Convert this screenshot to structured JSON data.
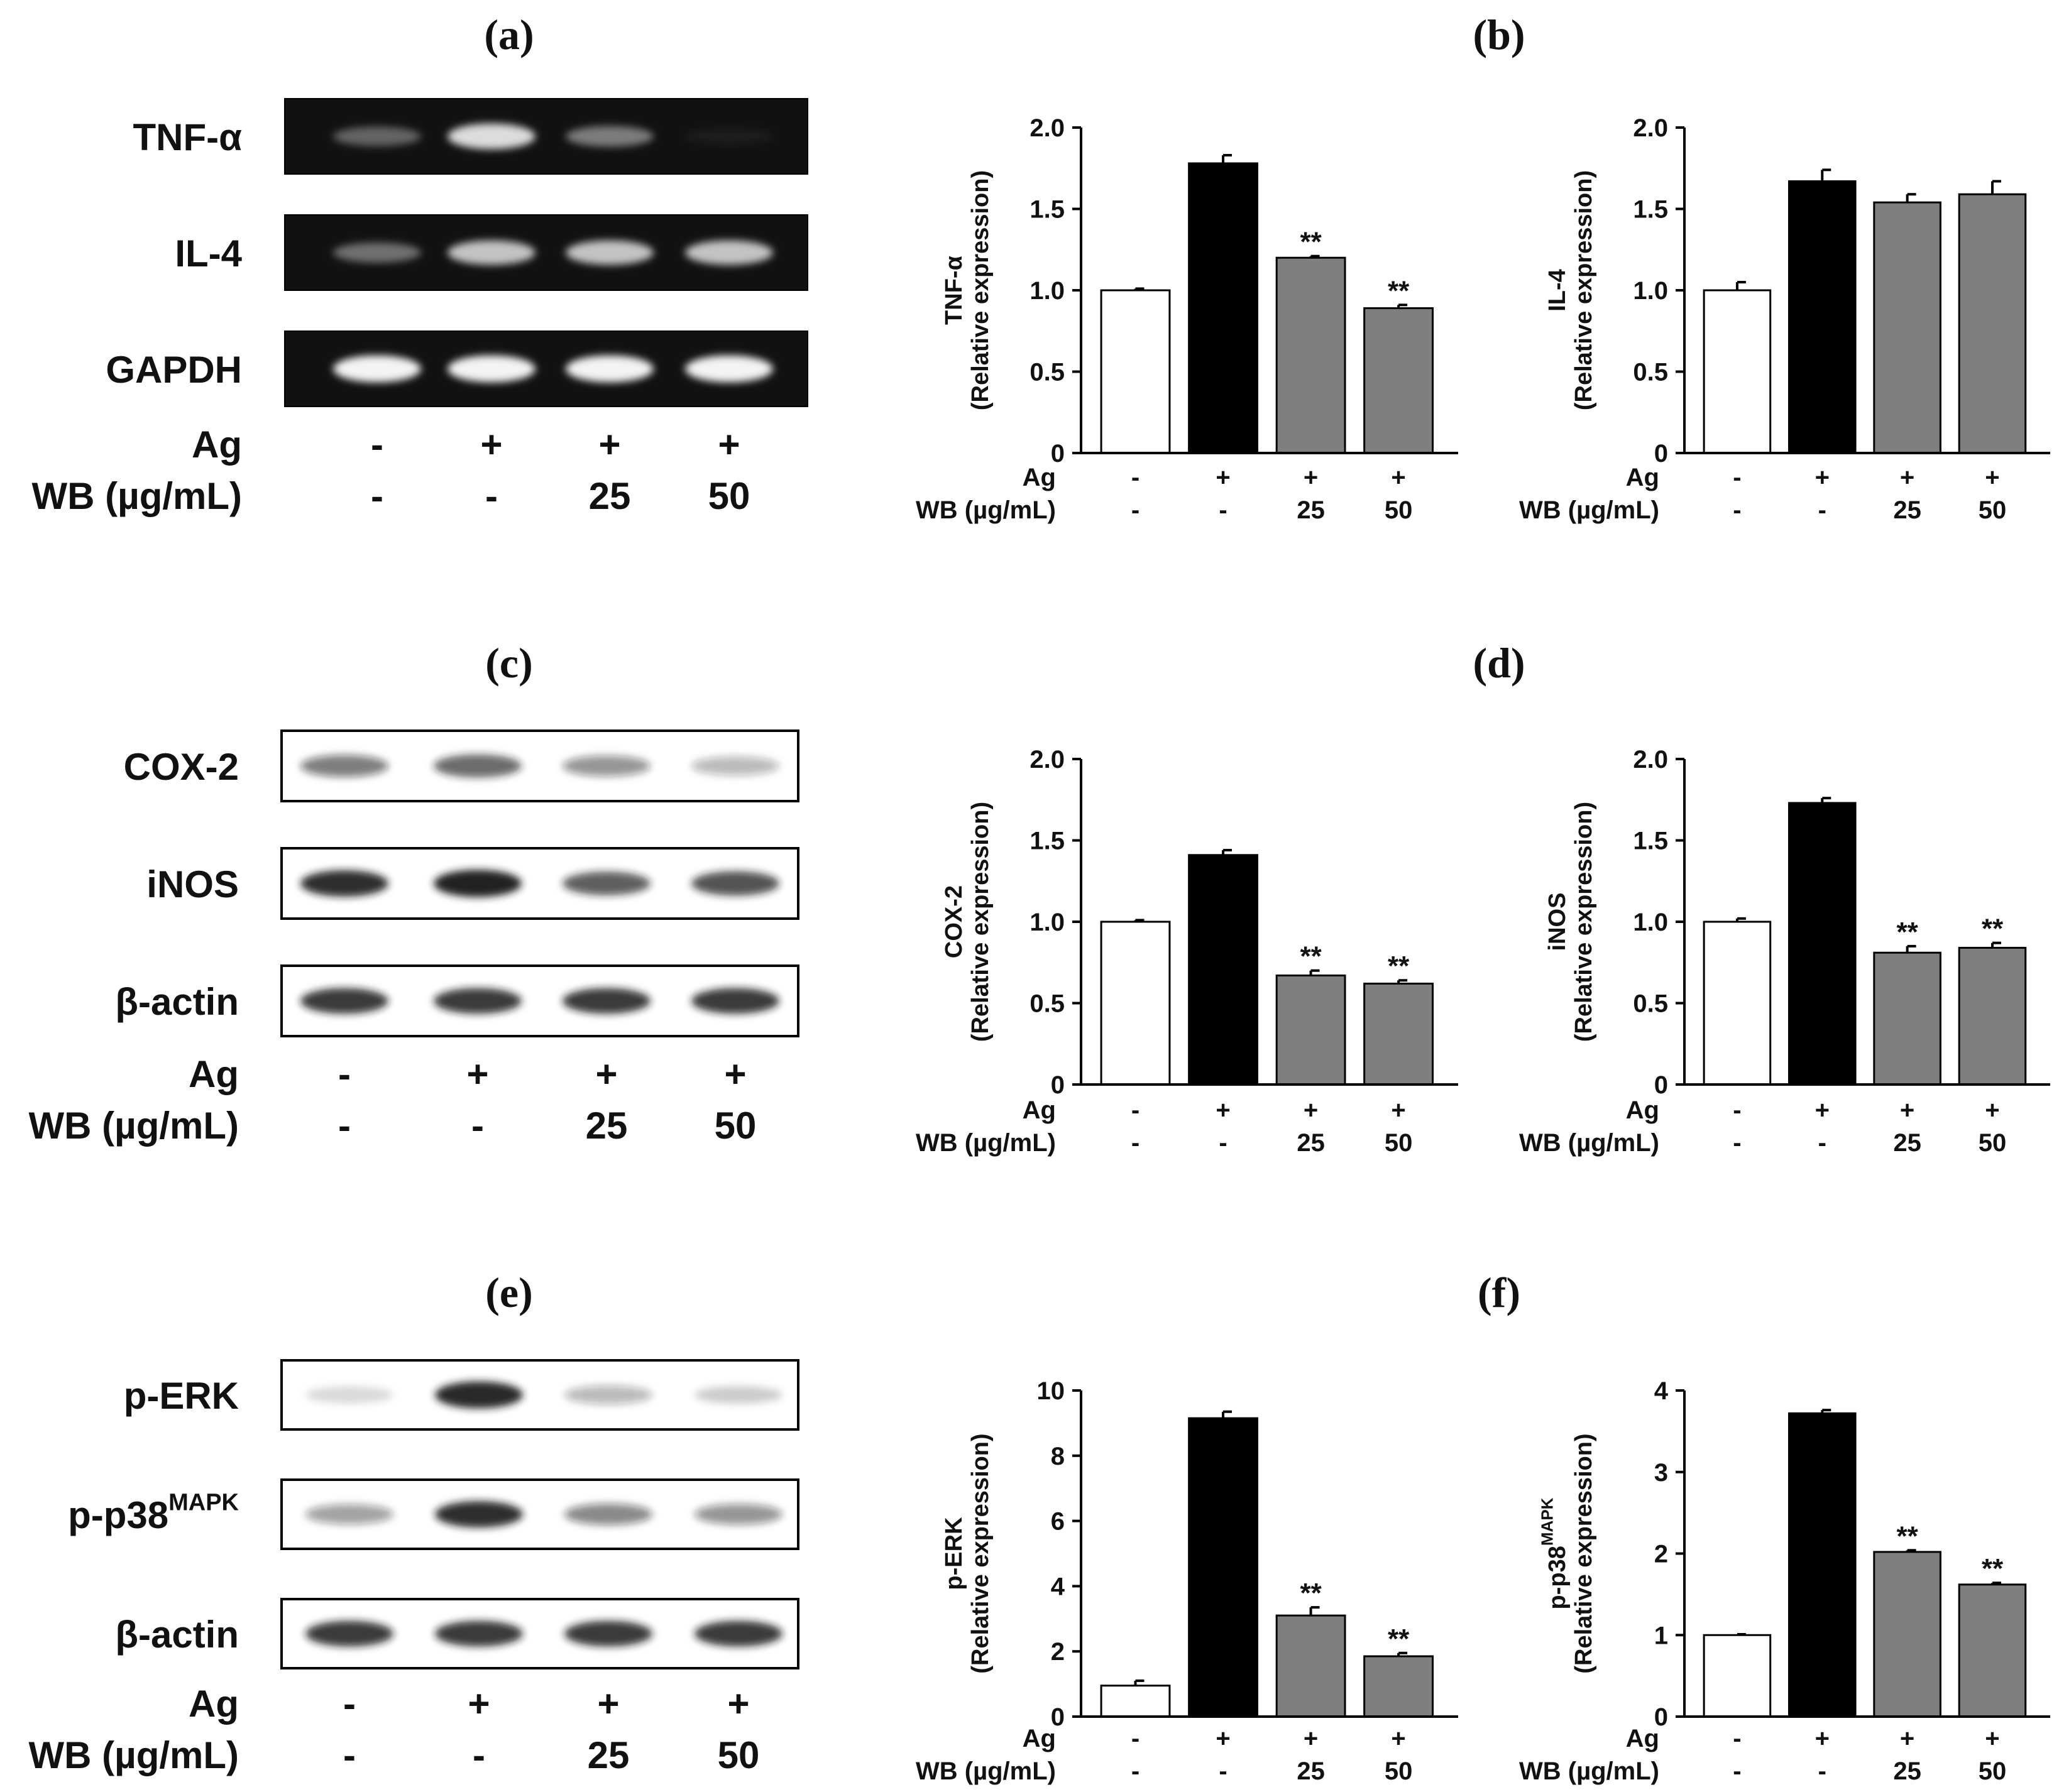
{
  "figure": {
    "ag_label": "Ag",
    "wb_label": "WB (µg/mL)",
    "ylabel_suffix": "(Relative expression)",
    "conditions": [
      {
        "ag": "-",
        "wb": "-"
      },
      {
        "ag": "+",
        "wb": "-"
      },
      {
        "ag": "+",
        "wb": "25"
      },
      {
        "ag": "+",
        "wb": "50"
      }
    ],
    "colors": {
      "control": "#ffffff",
      "ag_only": "#000000",
      "treated": "#7f7f7f",
      "axis": "#000000"
    }
  },
  "blots": [
    {
      "panel": "(a)",
      "style": "gel",
      "rows": [
        {
          "name": "TNF-α",
          "sup": "",
          "intensities": [
            0.35,
            0.85,
            0.45,
            0.05
          ]
        },
        {
          "name": "IL-4",
          "sup": "",
          "intensities": [
            0.4,
            0.75,
            0.75,
            0.75
          ]
        },
        {
          "name": "GAPDH",
          "sup": "",
          "intensities": [
            0.95,
            0.95,
            0.95,
            0.95
          ]
        }
      ],
      "ag": [
        "-",
        "+",
        "+",
        "+"
      ],
      "wb": [
        "-",
        "-",
        "25",
        "50"
      ]
    },
    {
      "panel": "(c)",
      "style": "western",
      "rows": [
        {
          "name": "COX-2",
          "sup": "",
          "intensities": [
            0.55,
            0.65,
            0.45,
            0.3
          ]
        },
        {
          "name": "iNOS",
          "sup": "",
          "intensities": [
            0.9,
            0.98,
            0.7,
            0.75
          ]
        },
        {
          "name": "β-actin",
          "sup": "",
          "intensities": [
            0.85,
            0.85,
            0.85,
            0.85
          ]
        }
      ],
      "ag": [
        "-",
        "+",
        "+",
        "+"
      ],
      "wb": [
        "-",
        "-",
        "25",
        "50"
      ]
    },
    {
      "panel": "(e)",
      "style": "western",
      "rows": [
        {
          "name": "p-ERK",
          "sup": "",
          "intensities": [
            0.15,
            0.95,
            0.3,
            0.2
          ]
        },
        {
          "name": "p-p38",
          "sup": "MAPK",
          "intensities": [
            0.4,
            0.9,
            0.5,
            0.45
          ]
        },
        {
          "name": "β-actin",
          "sup": "",
          "intensities": [
            0.85,
            0.85,
            0.85,
            0.85
          ]
        }
      ],
      "ag": [
        "-",
        "+",
        "+",
        "+"
      ],
      "wb": [
        "-",
        "-",
        "25",
        "50"
      ]
    }
  ],
  "chart_data": [
    {
      "panel": "(a)",
      "type": "bar",
      "title": "",
      "ylabel": "TNF-α",
      "ylabel_sup": "",
      "ylabel2": "(Relative expression)",
      "categories": [
        "-/-",
        "+/-",
        "+/25",
        "+/50"
      ],
      "values": [
        1.0,
        1.78,
        1.2,
        0.89
      ],
      "errors": [
        0.01,
        0.05,
        0.01,
        0.02
      ],
      "significance": [
        "",
        "",
        "**",
        "**"
      ],
      "ylim": [
        0,
        2.0
      ],
      "yticks": [
        "0",
        "0.5",
        "1.0",
        "1.5",
        "2.0"
      ]
    },
    {
      "panel": "(b)",
      "type": "bar",
      "title": "",
      "ylabel": "IL-4",
      "ylabel_sup": "",
      "ylabel2": "(Relative expression)",
      "categories": [
        "-/-",
        "+/-",
        "+/25",
        "+/50"
      ],
      "values": [
        1.0,
        1.67,
        1.54,
        1.59
      ],
      "errors": [
        0.05,
        0.07,
        0.05,
        0.08
      ],
      "significance": [
        "",
        "",
        "",
        ""
      ],
      "ylim": [
        0,
        2.0
      ],
      "yticks": [
        "0",
        "0.5",
        "1.0",
        "1.5",
        "2.0"
      ]
    },
    {
      "panel": "(c)",
      "type": "bar",
      "title": "",
      "ylabel": "COX-2",
      "ylabel_sup": "",
      "ylabel2": "(Relative expression)",
      "categories": [
        "-/-",
        "+/-",
        "+/25",
        "+/50"
      ],
      "values": [
        1.0,
        1.41,
        0.67,
        0.62
      ],
      "errors": [
        0.01,
        0.03,
        0.03,
        0.02
      ],
      "significance": [
        "",
        "",
        "**",
        "**"
      ],
      "ylim": [
        0,
        2.0
      ],
      "yticks": [
        "0",
        "0.5",
        "1.0",
        "1.5",
        "2.0"
      ]
    },
    {
      "panel": "(d)",
      "type": "bar",
      "title": "",
      "ylabel": "iNOS",
      "ylabel_sup": "",
      "ylabel2": "(Relative expression)",
      "categories": [
        "-/-",
        "+/-",
        "+/25",
        "+/50"
      ],
      "values": [
        1.0,
        1.73,
        0.81,
        0.84
      ],
      "errors": [
        0.02,
        0.03,
        0.04,
        0.03
      ],
      "significance": [
        "",
        "",
        "**",
        "**"
      ],
      "ylim": [
        0,
        2.0
      ],
      "yticks": [
        "0",
        "0.5",
        "1.0",
        "1.5",
        "2.0"
      ]
    },
    {
      "panel": "(e)",
      "type": "bar",
      "title": "",
      "ylabel": "p-ERK",
      "ylabel_sup": "",
      "ylabel2": "(Relative expression)",
      "categories": [
        "-/-",
        "+/-",
        "+/25",
        "+/50"
      ],
      "values": [
        0.95,
        9.15,
        3.1,
        1.85
      ],
      "errors": [
        0.15,
        0.2,
        0.25,
        0.1
      ],
      "significance": [
        "",
        "",
        "**",
        "**"
      ],
      "ylim": [
        0,
        10
      ],
      "yticks": [
        "0",
        "2",
        "4",
        "6",
        "8",
        "10"
      ]
    },
    {
      "panel": "(f)",
      "type": "bar",
      "title": "",
      "ylabel": "p-p38",
      "ylabel_sup": "MAPK",
      "ylabel2": "(Relative expression)",
      "categories": [
        "-/-",
        "+/-",
        "+/25",
        "+/50"
      ],
      "values": [
        1.0,
        3.72,
        2.02,
        1.62
      ],
      "errors": [
        0.01,
        0.04,
        0.02,
        0.02
      ],
      "significance": [
        "",
        "",
        "**",
        "**"
      ],
      "ylim": [
        0,
        4
      ],
      "yticks": [
        "0",
        "1",
        "2",
        "3",
        "4"
      ]
    }
  ]
}
